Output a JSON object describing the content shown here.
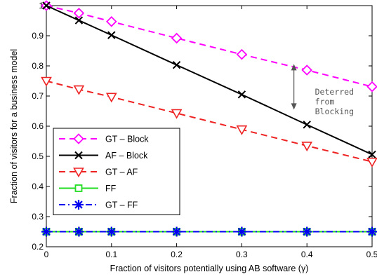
{
  "chart_data": {
    "type": "line",
    "xlabel": "Fraction of visitors potentially using AB software (γ)",
    "ylabel": "Fraction of visitors for a business model",
    "xlim": [
      0,
      0.5
    ],
    "ylim": [
      0.2,
      1.0
    ],
    "xticks": [
      "0",
      "0.1",
      "0.2",
      "0.3",
      "0.4",
      "0.5"
    ],
    "xtick_values": [
      0,
      0.1,
      0.2,
      0.3,
      0.4,
      0.5
    ],
    "yticks": [
      "0.2",
      "0.3",
      "0.4",
      "0.5",
      "0.6",
      "0.7",
      "0.8",
      "0.9",
      "1"
    ],
    "ytick_values": [
      0.2,
      0.3,
      0.4,
      0.5,
      0.6,
      0.7,
      0.8,
      0.9,
      1.0
    ],
    "grid": false,
    "legend_position": "bottom-left",
    "x": [
      0,
      0.05,
      0.1,
      0.2,
      0.3,
      0.4,
      0.5
    ],
    "series": [
      {
        "name": "GT – Block",
        "values": [
          1.0,
          0.975,
          0.947,
          0.892,
          0.838,
          0.786,
          0.731
        ],
        "color": "#ff00ff",
        "dash": "dashed",
        "marker": "diamond"
      },
      {
        "name": "AF – Block",
        "values": [
          1.0,
          0.951,
          0.902,
          0.803,
          0.705,
          0.605,
          0.506
        ],
        "color": "#000000",
        "dash": "solid",
        "marker": "x"
      },
      {
        "name": "GT – AF",
        "values": [
          0.75,
          0.722,
          0.697,
          0.643,
          0.589,
          0.535,
          0.482
        ],
        "color": "#ee2222",
        "dash": "dashed",
        "marker": "triangle-down"
      },
      {
        "name": "FF",
        "values": [
          0.25,
          0.25,
          0.25,
          0.25,
          0.25,
          0.25,
          0.25
        ],
        "color": "#22dd22",
        "dash": "solid",
        "marker": "square"
      },
      {
        "name": "GT – FF",
        "values": [
          0.25,
          0.25,
          0.25,
          0.25,
          0.25,
          0.25,
          0.25
        ],
        "color": "#0000ee",
        "dash": "dashdot",
        "marker": "asterisk"
      }
    ],
    "annotation": {
      "lines": [
        "Deterred",
        "from",
        "Blocking"
      ],
      "arrow_x": 0.38,
      "arrow_from": 0.806,
      "arrow_to": 0.655
    }
  }
}
